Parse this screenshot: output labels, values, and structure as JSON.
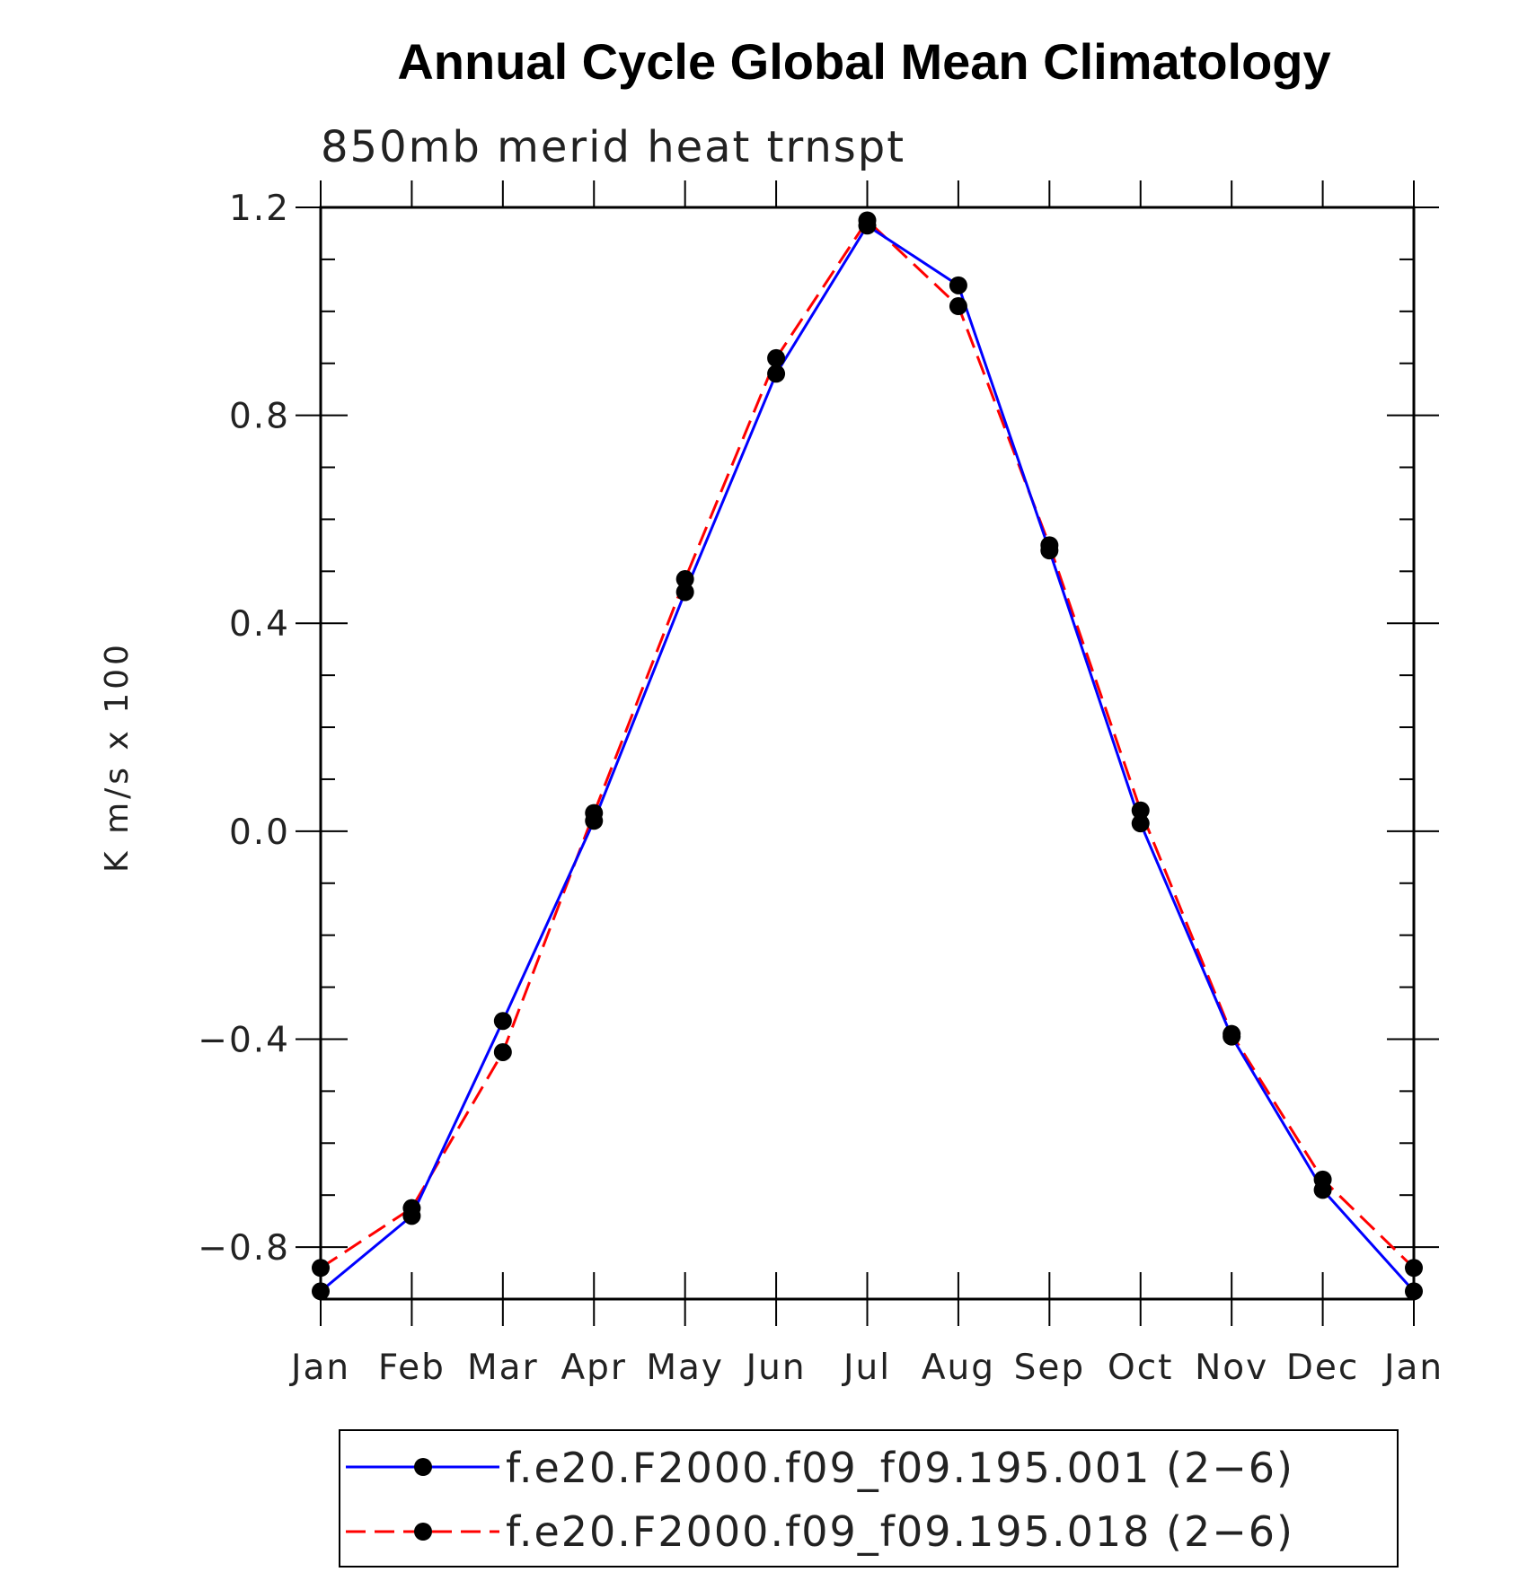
{
  "chart_data": {
    "type": "line",
    "title": "Annual Cycle Global Mean Climatology",
    "subtitle": "850mb merid heat trnspt",
    "ylabel": "K m/s x 100",
    "xlabel": "",
    "categories": [
      "Jan",
      "Feb",
      "Mar",
      "Apr",
      "May",
      "Jun",
      "Jul",
      "Aug",
      "Sep",
      "Oct",
      "Nov",
      "Dec",
      "Jan"
    ],
    "ylim": [
      -0.9,
      1.2
    ],
    "yticks": [
      1.2,
      0.8,
      0.4,
      0.0,
      -0.4,
      -0.8
    ],
    "ytick_labels": [
      "1.2",
      "0.8",
      "0.4",
      "0.0",
      "−0.4",
      "−0.8"
    ],
    "series": [
      {
        "name": "f.e20.F2000.f09_f09.195.001 (2−6)",
        "color": "#0000ff",
        "dash": "solid",
        "values": [
          -0.885,
          -0.74,
          -0.365,
          0.02,
          0.46,
          0.88,
          1.165,
          1.05,
          0.54,
          0.015,
          -0.395,
          -0.69,
          -0.885
        ]
      },
      {
        "name": "f.e20.F2000.f09_f09.195.018 (2−6)",
        "color": "#ff0000",
        "dash": "dashed",
        "values": [
          -0.84,
          -0.725,
          -0.425,
          0.035,
          0.485,
          0.91,
          1.175,
          1.01,
          0.55,
          0.04,
          -0.39,
          -0.67,
          -0.84
        ]
      }
    ],
    "legend_position": "bottom-center",
    "grid": false
  }
}
